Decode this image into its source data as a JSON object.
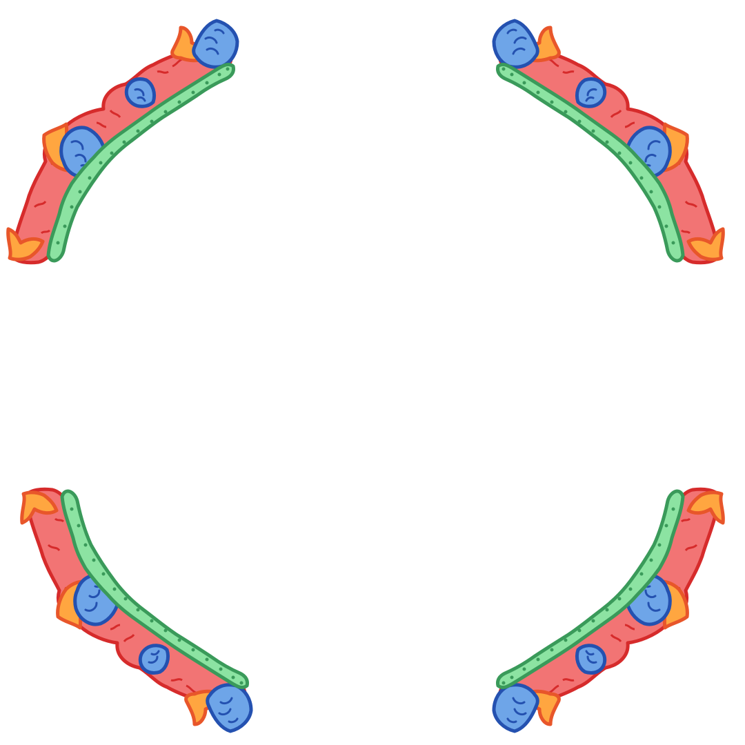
{
  "frame": {
    "background": "#ffffff",
    "palette": {
      "red_fill": "#f27474",
      "red_stroke": "#d62b2b",
      "orange_fill": "#ffa640",
      "orange_stroke": "#e8562a",
      "blue_fill": "#6ea5e8",
      "blue_stroke": "#2451b0",
      "green_fill": "#8ce3a2",
      "green_stroke": "#3a9a5a",
      "green_dot": "#3a9a5a"
    },
    "elements": [
      {
        "name": "garland-top-left",
        "icon": "floral-garland-arc"
      },
      {
        "name": "garland-top-right",
        "icon": "floral-garland-arc"
      },
      {
        "name": "garland-bottom-left",
        "icon": "floral-garland-arc"
      },
      {
        "name": "garland-bottom-right",
        "icon": "floral-garland-arc"
      }
    ]
  }
}
